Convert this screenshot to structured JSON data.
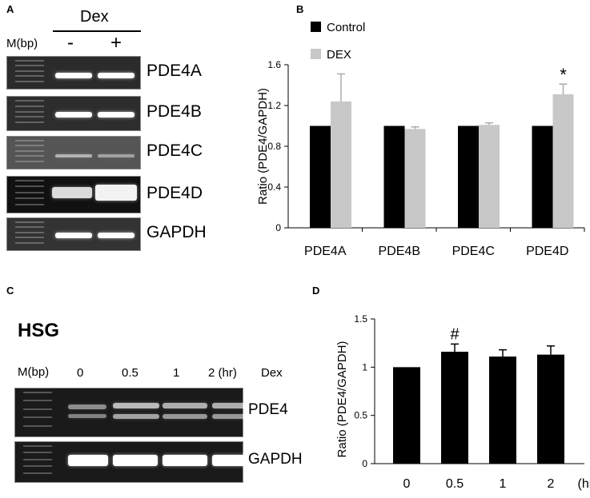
{
  "panels": {
    "a": "A",
    "b": "B",
    "c": "C",
    "d": "D"
  },
  "panel_a": {
    "treatment_label": "Dex",
    "marker_label": "M(bp)",
    "minus": "-",
    "plus": "+",
    "gel_labels": [
      "PDE4A",
      "PDE4B",
      "PDE4C",
      "PDE4D",
      "GAPDH"
    ]
  },
  "panel_c": {
    "cell_line": "HSG",
    "marker_label": "M(bp)",
    "time_points": [
      "0",
      "0.5",
      "1",
      "2 (hr)"
    ],
    "treatment_label": "Dex",
    "gel_labels": [
      "PDE4",
      "GAPDH"
    ]
  },
  "chart_data": [
    {
      "type": "bar",
      "panel": "B",
      "categories": [
        "PDE4A",
        "PDE4B",
        "PDE4C",
        "PDE4D"
      ],
      "series": [
        {
          "name": "Control",
          "color": "#000000",
          "values": [
            1.0,
            1.0,
            1.0,
            1.0
          ],
          "errors": [
            0,
            0,
            0,
            0
          ]
        },
        {
          "name": "DEX",
          "color": "#c8c8c8",
          "values": [
            1.24,
            0.97,
            1.01,
            1.31
          ],
          "errors": [
            0.27,
            0.02,
            0.02,
            0.1
          ]
        }
      ],
      "ylabel": "Ratio  (PDE4/GAPDH)",
      "ylim": [
        0,
        1.6
      ],
      "yticks": [
        "0",
        "0.4",
        "0.8",
        "1.2",
        "1.6"
      ],
      "annotation": "*",
      "legend": "top-left"
    },
    {
      "type": "bar",
      "panel": "D",
      "categories": [
        "0",
        "0.5",
        "1",
        "2"
      ],
      "x_unit": "(hr)",
      "values": [
        1.0,
        1.16,
        1.11,
        1.13
      ],
      "errors": [
        0,
        0.08,
        0.07,
        0.09
      ],
      "color": "#000000",
      "ylabel": "Ratio  (PDE4/GAPDH)",
      "ylim": [
        0,
        1.5
      ],
      "yticks": [
        "0",
        "0.5",
        "1",
        "1.5"
      ],
      "annotation": "#"
    }
  ]
}
